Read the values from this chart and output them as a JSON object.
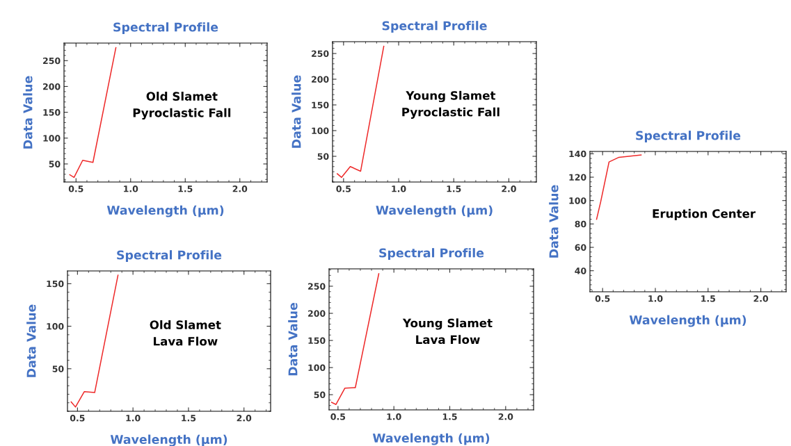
{
  "chart_data": [
    {
      "type": "line",
      "title": "Spectral Profile",
      "xlabel": "Wavelength (µm)",
      "ylabel": "Data Value",
      "annotations": [
        "Old Slamet\nPyroclastic Fall"
      ],
      "x": [
        0.443,
        0.482,
        0.561,
        0.655,
        0.865
      ],
      "series": [
        {
          "color": "#ee2a2a",
          "values": [
            29,
            24,
            57,
            53,
            275
          ]
        }
      ],
      "xlim": [
        0.39,
        2.25
      ],
      "xticks": [
        {
          "value": 0.5,
          "label": "0.5"
        },
        {
          "value": 1,
          "label": "1.0"
        },
        {
          "value": 1.5,
          "label": "1.5"
        },
        {
          "value": 2,
          "label": "2.0"
        }
      ],
      "ylim": [
        15,
        284
      ],
      "yticks": [
        50,
        100,
        150,
        200,
        250
      ],
      "grid": false,
      "legend": false
    },
    {
      "type": "line",
      "title": "Spectral Profile",
      "xlabel": "Wavelength (µm)",
      "ylabel": "Data Value",
      "annotations": [
        "Young Slamet\nPyroclastic Fall"
      ],
      "x": [
        0.443,
        0.482,
        0.561,
        0.655,
        0.865
      ],
      "series": [
        {
          "color": "#ee2a2a",
          "values": [
            16,
            9,
            30,
            21,
            264
          ]
        }
      ],
      "xlim": [
        0.4,
        2.25
      ],
      "xticks": [
        {
          "value": 0.5,
          "label": "0.5"
        },
        {
          "value": 1,
          "label": "1.0"
        },
        {
          "value": 1.5,
          "label": "1.5"
        },
        {
          "value": 2,
          "label": "2.0"
        }
      ],
      "ylim": [
        0,
        273
      ],
      "yticks": [
        50,
        100,
        150,
        200,
        250
      ],
      "grid": false,
      "legend": false
    },
    {
      "type": "line",
      "title": "Spectral Profile",
      "xlabel": "Wavelength (µm)",
      "ylabel": "Data Value",
      "annotations": [
        "Eruption Center"
      ],
      "x": [
        0.443,
        0.482,
        0.561,
        0.655,
        0.865
      ],
      "series": [
        {
          "color": "#ee2a2a",
          "values": [
            84,
            99,
            133,
            137,
            139
          ]
        }
      ],
      "xlim": [
        0.38,
        2.24
      ],
      "xticks": [
        {
          "value": 0.5,
          "label": "0.5"
        },
        {
          "value": 1,
          "label": "1.0"
        },
        {
          "value": 1.5,
          "label": "1.5"
        },
        {
          "value": 2,
          "label": "2.0"
        }
      ],
      "ylim": [
        22,
        142
      ],
      "yticks": [
        40,
        60,
        80,
        100,
        120,
        140
      ],
      "grid": false,
      "legend": false
    },
    {
      "type": "line",
      "title": "Spectral Profile",
      "xlabel": "Wavelength (µm)",
      "ylabel": "Data Value",
      "annotations": [
        "Old Slamet\nLava Flow"
      ],
      "x": [
        0.443,
        0.482,
        0.561,
        0.655,
        0.865
      ],
      "series": [
        {
          "color": "#ee2a2a",
          "values": [
            11,
            5,
            23,
            22,
            160
          ]
        }
      ],
      "xlim": [
        0.41,
        2.24
      ],
      "xticks": [
        {
          "value": 0.5,
          "label": "0.5"
        },
        {
          "value": 1,
          "label": "1.0"
        },
        {
          "value": 1.5,
          "label": "1.5"
        },
        {
          "value": 2,
          "label": "2.0"
        }
      ],
      "ylim": [
        0,
        165
      ],
      "yticks": [
        50,
        100,
        150
      ],
      "grid": false,
      "legend": false
    },
    {
      "type": "line",
      "title": "Spectral Profile",
      "xlabel": "Wavelength (µm)",
      "ylabel": "Data Value",
      "annotations": [
        "Young Slamet\nLava Flow"
      ],
      "x": [
        0.443,
        0.482,
        0.561,
        0.655,
        0.865
      ],
      "series": [
        {
          "color": "#ee2a2a",
          "values": [
            36,
            32,
            62,
            63,
            273
          ]
        }
      ],
      "xlim": [
        0.42,
        2.25
      ],
      "xticks": [
        {
          "value": 0.5,
          "label": "0.5"
        },
        {
          "value": 1,
          "label": "1.0"
        },
        {
          "value": 1.5,
          "label": "1.5"
        },
        {
          "value": 2,
          "label": "2.0"
        }
      ],
      "ylim": [
        22,
        282
      ],
      "yticks": [
        50,
        100,
        150,
        200,
        250
      ],
      "grid": false,
      "legend": false
    }
  ]
}
